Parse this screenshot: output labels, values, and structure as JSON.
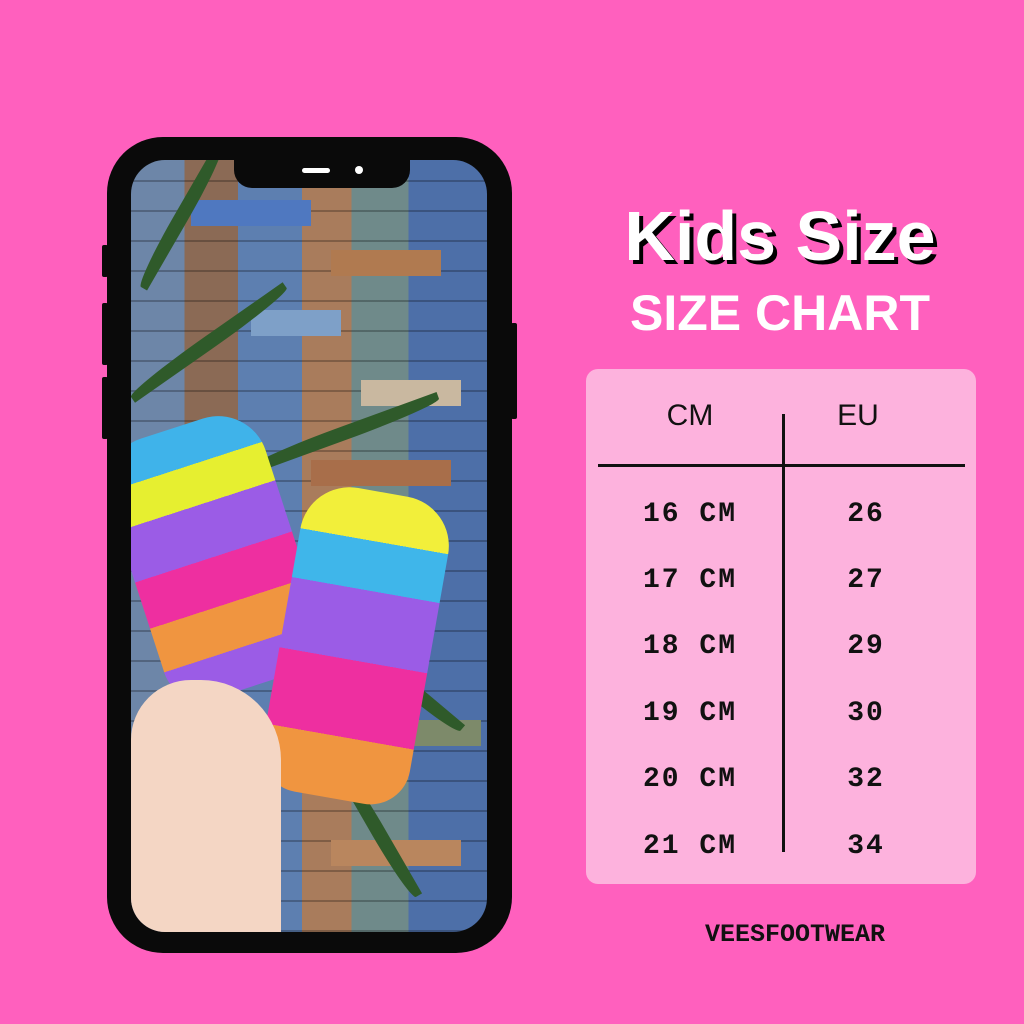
{
  "title": "Kids Size",
  "subtitle": "SIZE CHART",
  "table": {
    "headers": [
      "CM",
      "EU"
    ],
    "rows": [
      {
        "cm": "16 CM",
        "eu": "26"
      },
      {
        "cm": "17 CM",
        "eu": "27"
      },
      {
        "cm": "18 CM",
        "eu": "29"
      },
      {
        "cm": "19 CM",
        "eu": "30"
      },
      {
        "cm": "20 CM",
        "eu": "32"
      },
      {
        "cm": "21 CM",
        "eu": "34"
      }
    ]
  },
  "brand": "VEESFOOTWEAR",
  "colors": {
    "background": "#ff60be",
    "card": "#fdb2dd",
    "text": "#111111"
  }
}
